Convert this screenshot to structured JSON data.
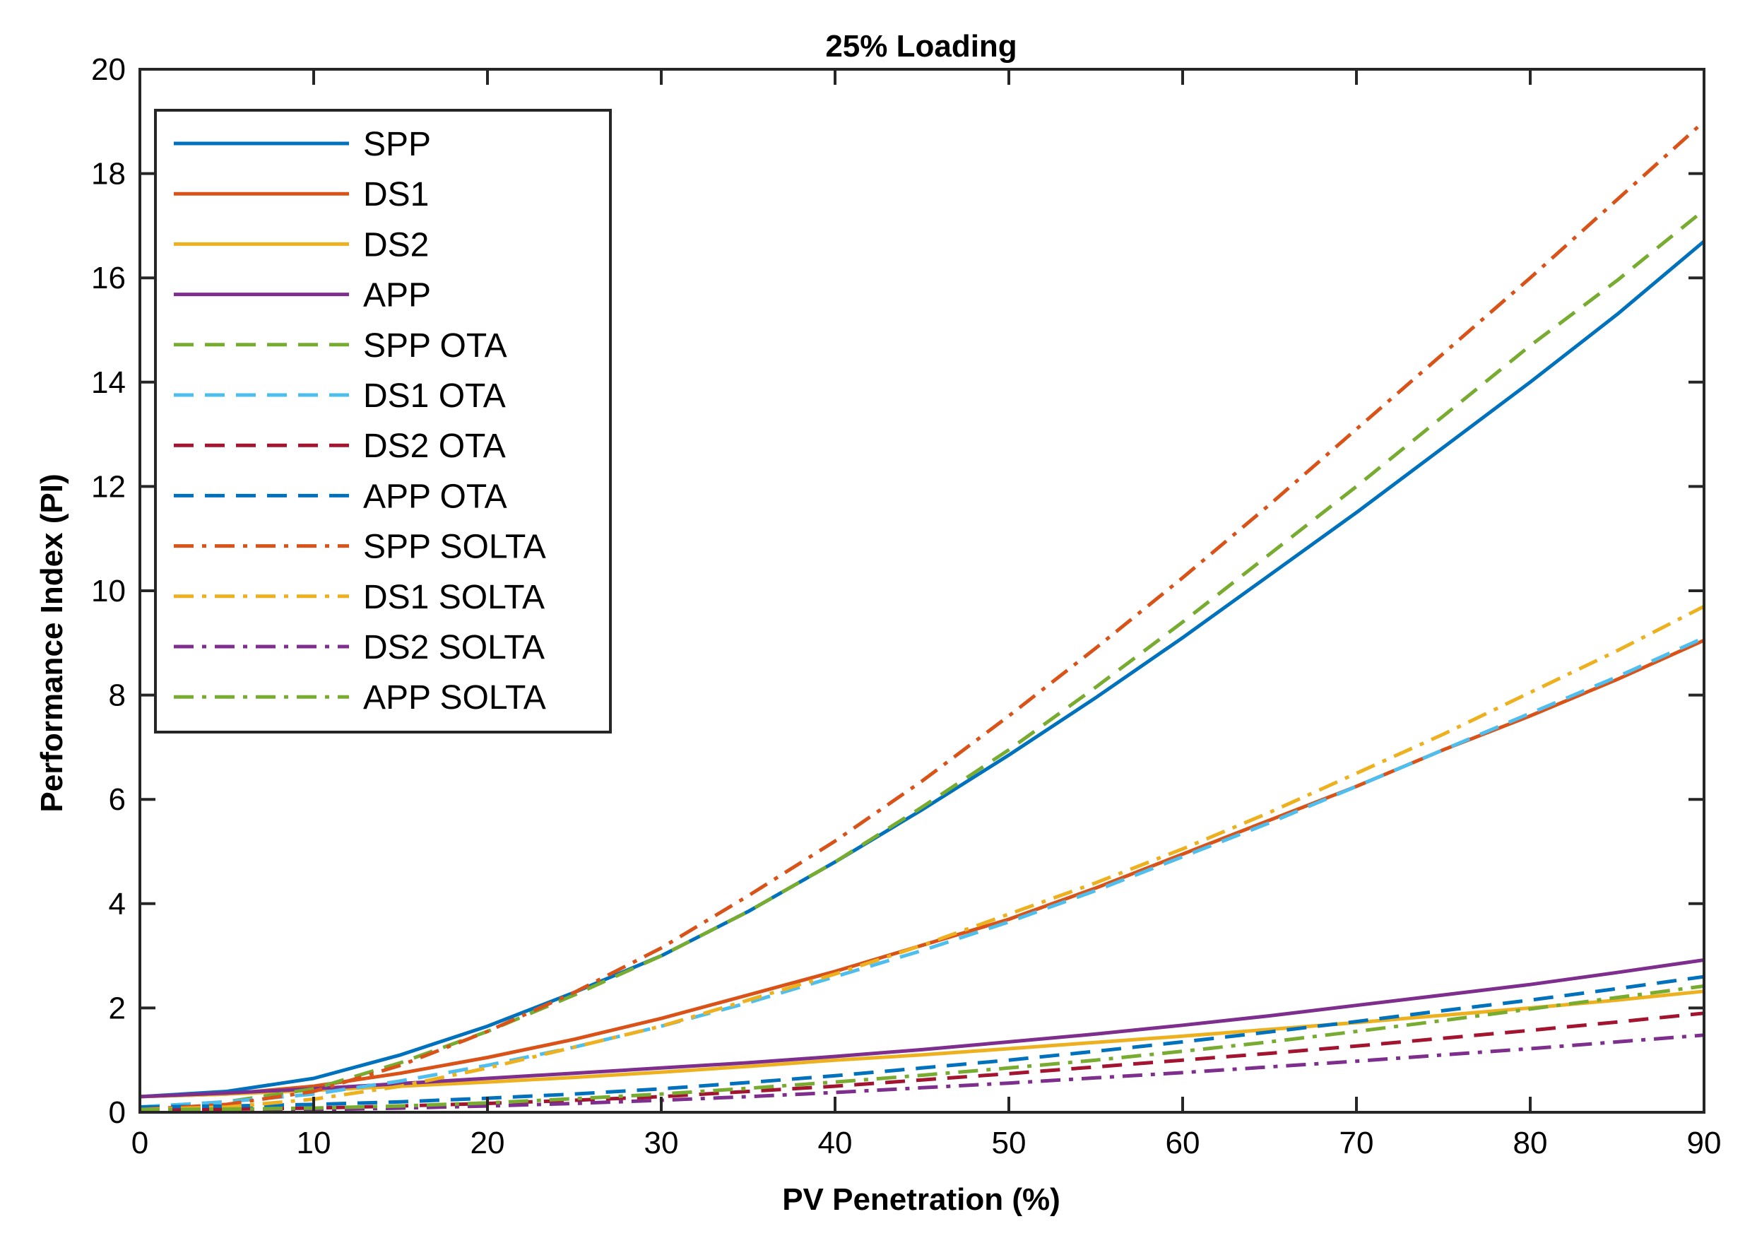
{
  "chart_data": {
    "type": "line",
    "title": "25% Loading",
    "xlabel": "PV Penetration (%)",
    "ylabel": "Performance Index (PI)",
    "xlim": [
      0,
      90
    ],
    "ylim": [
      0,
      20
    ],
    "xticks": [
      0,
      10,
      20,
      30,
      40,
      50,
      60,
      70,
      80,
      90
    ],
    "yticks": [
      0,
      2,
      4,
      6,
      8,
      10,
      12,
      14,
      16,
      18,
      20
    ],
    "grid": false,
    "legend_position": "top-left",
    "x": [
      0,
      5,
      10,
      15,
      20,
      25,
      30,
      35,
      40,
      45,
      50,
      55,
      60,
      65,
      70,
      75,
      80,
      85,
      90
    ],
    "series": [
      {
        "name": "SPP",
        "color": "#0072BD",
        "style": "solid",
        "values": [
          0.3,
          0.4,
          0.65,
          1.1,
          1.65,
          2.3,
          3.0,
          3.85,
          4.8,
          5.8,
          6.85,
          7.95,
          9.1,
          10.3,
          11.5,
          12.75,
          14.0,
          15.3,
          16.7
        ]
      },
      {
        "name": "DS1",
        "color": "#D95319",
        "style": "solid",
        "values": [
          0.3,
          0.35,
          0.5,
          0.75,
          1.05,
          1.4,
          1.8,
          2.25,
          2.7,
          3.2,
          3.7,
          4.3,
          4.95,
          5.6,
          6.25,
          6.95,
          7.6,
          8.3,
          9.05
        ]
      },
      {
        "name": "DS2",
        "color": "#EDB120",
        "style": "solid",
        "values": [
          0.3,
          0.35,
          0.42,
          0.5,
          0.58,
          0.67,
          0.77,
          0.88,
          1.0,
          1.1,
          1.22,
          1.34,
          1.46,
          1.59,
          1.72,
          1.86,
          2.0,
          2.15,
          2.32
        ]
      },
      {
        "name": "APP",
        "color": "#7E2F8E",
        "style": "solid",
        "values": [
          0.3,
          0.37,
          0.45,
          0.55,
          0.65,
          0.75,
          0.85,
          0.95,
          1.07,
          1.2,
          1.35,
          1.5,
          1.67,
          1.85,
          2.05,
          2.25,
          2.45,
          2.68,
          2.92
        ]
      },
      {
        "name": "SPP OTA",
        "color": "#77AC30",
        "style": "dashed",
        "values": [
          0.1,
          0.2,
          0.45,
          0.95,
          1.55,
          2.25,
          3.0,
          3.85,
          4.8,
          5.85,
          6.95,
          8.15,
          9.4,
          10.7,
          12.0,
          13.35,
          14.7,
          15.95,
          17.3
        ]
      },
      {
        "name": "DS1 OTA",
        "color": "#4DBEEE",
        "style": "dashed",
        "values": [
          0.1,
          0.2,
          0.35,
          0.6,
          0.9,
          1.25,
          1.65,
          2.1,
          2.6,
          3.1,
          3.65,
          4.25,
          4.9,
          5.55,
          6.25,
          6.95,
          7.65,
          8.35,
          9.1
        ]
      },
      {
        "name": "DS2 OTA",
        "color": "#A2142F",
        "style": "dashed",
        "values": [
          0.05,
          0.06,
          0.08,
          0.12,
          0.17,
          0.23,
          0.3,
          0.4,
          0.5,
          0.62,
          0.74,
          0.87,
          1.0,
          1.13,
          1.27,
          1.42,
          1.57,
          1.73,
          1.9
        ]
      },
      {
        "name": "APP OTA",
        "color": "#0072BD",
        "style": "dashed",
        "values": [
          0.1,
          0.12,
          0.15,
          0.2,
          0.27,
          0.35,
          0.45,
          0.57,
          0.7,
          0.85,
          1.0,
          1.17,
          1.35,
          1.54,
          1.74,
          1.95,
          2.15,
          2.37,
          2.6
        ]
      },
      {
        "name": "SPP SOLTA",
        "color": "#D95319",
        "style": "dashdot",
        "values": [
          0.05,
          0.15,
          0.4,
          0.9,
          1.55,
          2.3,
          3.15,
          4.15,
          5.2,
          6.35,
          7.6,
          8.9,
          10.25,
          11.65,
          13.1,
          14.55,
          16.0,
          17.5,
          19.0
        ]
      },
      {
        "name": "DS1 SOLTA",
        "color": "#EDB120",
        "style": "dashdot",
        "values": [
          0.05,
          0.1,
          0.25,
          0.5,
          0.85,
          1.25,
          1.65,
          2.15,
          2.65,
          3.2,
          3.8,
          4.4,
          5.05,
          5.75,
          6.5,
          7.25,
          8.05,
          8.85,
          9.7
        ]
      },
      {
        "name": "DS2 SOLTA",
        "color": "#7E2F8E",
        "style": "dashdot",
        "values": [
          0.02,
          0.03,
          0.05,
          0.08,
          0.12,
          0.17,
          0.23,
          0.3,
          0.38,
          0.47,
          0.56,
          0.66,
          0.76,
          0.87,
          0.98,
          1.1,
          1.22,
          1.35,
          1.48
        ]
      },
      {
        "name": "APP SOLTA",
        "color": "#77AC30",
        "style": "dashdot",
        "values": [
          0.05,
          0.06,
          0.08,
          0.12,
          0.18,
          0.26,
          0.35,
          0.46,
          0.58,
          0.71,
          0.85,
          1.0,
          1.17,
          1.35,
          1.55,
          1.76,
          1.98,
          2.2,
          2.42
        ]
      }
    ]
  }
}
